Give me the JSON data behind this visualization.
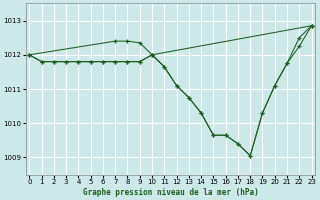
{
  "title": "Graphe pression niveau de la mer (hPa)",
  "xlabel_ticks": [
    0,
    1,
    2,
    3,
    4,
    5,
    6,
    7,
    8,
    9,
    10,
    11,
    12,
    13,
    14,
    15,
    16,
    17,
    18,
    19,
    20,
    21,
    22,
    23
  ],
  "ylim": [
    1008.5,
    1013.5
  ],
  "yticks": [
    1009,
    1010,
    1011,
    1012,
    1013
  ],
  "xlim": [
    -0.3,
    23.3
  ],
  "bg_color": "#cce8e8",
  "grid_color": "#ffffff",
  "line_color": "#1a6020",
  "line1_x": [
    0,
    1,
    2,
    3,
    4,
    5,
    6,
    7,
    8,
    9,
    10,
    23
  ],
  "line1_y": [
    1012.0,
    1011.8,
    1011.8,
    1011.8,
    1011.8,
    1011.8,
    1011.8,
    1011.8,
    1011.8,
    1011.8,
    1012.0,
    1012.85
  ],
  "line2_x": [
    0,
    7,
    8,
    9,
    10,
    11,
    12,
    13,
    14,
    15,
    16,
    17,
    18,
    19,
    20,
    21,
    22,
    23
  ],
  "line2_y": [
    1012.0,
    1012.4,
    1012.4,
    1012.35,
    1012.0,
    1011.65,
    1011.1,
    1010.75,
    1010.3,
    1009.65,
    1009.65,
    1009.4,
    1009.05,
    1010.3,
    1011.1,
    1011.75,
    1012.5,
    1012.85
  ],
  "line3_x": [
    0,
    1,
    2,
    3,
    4,
    5,
    6,
    7,
    8,
    9,
    10,
    11,
    12,
    13,
    14,
    15,
    16,
    17,
    18,
    19,
    20,
    21,
    22,
    23
  ],
  "line3_y": [
    1012.0,
    1011.8,
    1011.8,
    1011.8,
    1011.8,
    1011.8,
    1011.8,
    1011.8,
    1011.8,
    1011.8,
    1012.0,
    1011.65,
    1011.1,
    1010.75,
    1010.3,
    1009.65,
    1009.65,
    1009.4,
    1009.05,
    1010.3,
    1011.1,
    1011.75,
    1012.25,
    1012.85
  ]
}
